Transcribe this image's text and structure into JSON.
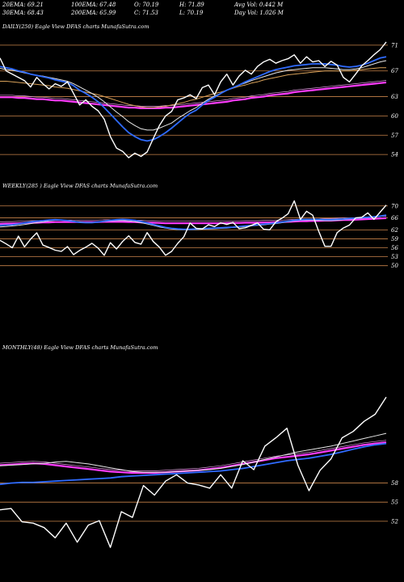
{
  "header": {
    "row1": [
      "20EMA: 69.21",
      "100EMA: 67.48",
      "O: 70.19",
      "H: 71.89",
      "Avg Vol: 0.442  M"
    ],
    "row2": [
      "30EMA: 68.43",
      "200EMA: 65.99",
      "C: 71.53",
      "L: 70.19",
      "Day Vol: 1.026  M"
    ]
  },
  "panels": [
    {
      "title": "DAILY(250) Eagle  View  DFAS charts MunafaSutra.com"
    },
    {
      "title": "WEEKLY(285                          ) Eagle  View  DFAS charts MunafaSutra.com"
    },
    {
      "title": "MONTHLY(48) Eagle  View  DFAS charts MunafaSutra.com"
    }
  ],
  "colors": {
    "background": "#000000",
    "price": "#ffffff",
    "level_lines": "#c8834a",
    "ema_blue": "#2f6bff",
    "ema_magenta": "#ff3cff",
    "ema_light": "#e6e6e6",
    "ema_gold": "#d9a25a"
  },
  "chart_data": [
    {
      "type": "line",
      "title": "DAILY(250) Eagle  View  DFAS charts MunafaSutra.com",
      "ylim": [
        51,
        73
      ],
      "tick_labels": [
        71,
        67,
        63,
        60,
        57,
        54
      ],
      "series": [
        {
          "role": "price",
          "values": [
            69,
            67,
            66.5,
            66,
            65.5,
            64.5,
            66,
            65,
            64.2,
            65,
            64.6,
            65.3,
            63.5,
            61.7,
            62.5,
            61.5,
            60.8,
            59.5,
            56.8,
            55,
            54.5,
            53.5,
            54.2,
            53.7,
            54.4,
            56.5,
            58.5,
            60,
            60.7,
            62.5,
            62.8,
            63.3,
            62.7,
            64.4,
            64.8,
            63.3,
            65.3,
            66.5,
            64.8,
            66.2,
            67.1,
            66.5,
            67.7,
            68.4,
            68.8,
            68.2,
            68.6,
            68.9,
            69.5,
            68.2,
            69.2,
            68.4,
            68.6,
            67.7,
            68.5,
            67.9,
            66,
            65.3,
            66.5,
            67.8,
            68.6,
            69.5,
            70.3,
            71.5
          ]
        },
        {
          "role": "ema_20",
          "values": [
            67.7,
            67.5,
            67.3,
            67,
            66.8,
            66.5,
            66.3,
            66.1,
            65.9,
            65.6,
            65.4,
            65.2,
            64.7,
            64,
            63.5,
            62.9,
            62.2,
            61.3,
            60.3,
            59.3,
            58.3,
            57.4,
            56.8,
            56.3,
            56.1,
            56.3,
            56.8,
            57.4,
            58.1,
            58.9,
            59.7,
            60.4,
            60.9,
            61.7,
            62.4,
            62.9,
            63.5,
            64,
            64.4,
            64.8,
            65.3,
            65.7,
            66.1,
            66.5,
            66.9,
            67.2,
            67.4,
            67.6,
            67.8,
            67.9,
            68,
            68.1,
            68.1,
            68.1,
            68,
            67.9,
            67.7,
            67.6,
            67.7,
            67.9,
            68.2,
            68.6,
            69,
            69.2
          ]
        },
        {
          "role": "ema_30",
          "values": [
            67.4,
            67.2,
            67.1,
            66.9,
            66.7,
            66.5,
            66.3,
            66.2,
            66,
            65.8,
            65.6,
            65.4,
            65,
            64.5,
            64,
            63.5,
            62.9,
            62.2,
            61.4,
            60.6,
            59.9,
            59.1,
            58.5,
            58,
            57.8,
            57.8,
            58.1,
            58.5,
            58.9,
            59.6,
            60.2,
            60.8,
            61.3,
            62,
            62.6,
            63.1,
            63.5,
            64,
            64.4,
            64.8,
            65.1,
            65.5,
            65.8,
            66.1,
            66.4,
            66.7,
            66.9,
            67.1,
            67.2,
            67.3,
            67.4,
            67.5,
            67.5,
            67.5,
            67.4,
            67.3,
            67.2,
            67.2,
            67.3,
            67.5,
            67.8,
            68.1,
            68.4,
            68.6
          ]
        },
        {
          "role": "ema_100",
          "values": [
            65.4,
            65.4,
            65.3,
            65.2,
            65.1,
            65,
            64.9,
            64.8,
            64.7,
            64.5,
            64.4,
            64.3,
            64.1,
            63.9,
            63.7,
            63.5,
            63.3,
            63,
            62.7,
            62.4,
            62.1,
            61.8,
            61.6,
            61.4,
            61.3,
            61.3,
            61.4,
            61.5,
            61.7,
            61.9,
            62.1,
            62.4,
            62.6,
            62.9,
            63.2,
            63.5,
            63.7,
            64,
            64.3,
            64.6,
            64.8,
            65.1,
            65.3,
            65.6,
            65.8,
            66,
            66.2,
            66.4,
            66.5,
            66.6,
            66.7,
            66.8,
            66.9,
            67,
            67,
            67,
            67,
            67,
            67.1,
            67.2,
            67.3,
            67.4,
            67.5,
            67.5
          ]
        },
        {
          "role": "ema_200",
          "values": [
            62.9,
            62.9,
            62.9,
            62.8,
            62.8,
            62.7,
            62.6,
            62.6,
            62.5,
            62.4,
            62.4,
            62.3,
            62.2,
            62.1,
            62,
            61.9,
            61.8,
            61.7,
            61.6,
            61.5,
            61.4,
            61.3,
            61.3,
            61.2,
            61.2,
            61.2,
            61.2,
            61.3,
            61.3,
            61.4,
            61.5,
            61.6,
            61.7,
            61.8,
            61.9,
            62,
            62.1,
            62.2,
            62.4,
            62.5,
            62.6,
            62.8,
            62.9,
            63,
            63.2,
            63.3,
            63.4,
            63.5,
            63.7,
            63.8,
            63.9,
            64,
            64.1,
            64.2,
            64.3,
            64.4,
            64.5,
            64.6,
            64.7,
            64.8,
            64.9,
            65,
            65.1,
            65.2
          ]
        }
      ]
    },
    {
      "type": "line",
      "title": "WEEKLY(285                          ) Eagle  View  DFAS charts MunafaSutra.com",
      "ylim": [
        28,
        74
      ],
      "tick_labels": [
        70,
        66,
        62,
        59,
        56,
        53,
        50
      ],
      "series": [
        {
          "role": "price",
          "values": [
            58.5,
            57.3,
            56,
            59.9,
            56.3,
            58.9,
            61,
            56.9,
            56.1,
            55.2,
            54.8,
            56.4,
            53.7,
            55.1,
            56.2,
            57.5,
            55.9,
            53.5,
            57.7,
            55.6,
            58.1,
            60,
            57.8,
            57.2,
            61.1,
            58.1,
            56.2,
            53.5,
            54.8,
            57.5,
            59.7,
            64.3,
            62.5,
            62.3,
            63.7,
            63.1,
            64.4,
            63.8,
            64.5,
            62.4,
            62.7,
            63.5,
            64.3,
            62.2,
            62,
            64.7,
            65.9,
            67.4,
            71.7,
            65.5,
            68.2,
            66.9,
            61.5,
            56.5,
            56.5,
            61.1,
            62.6,
            63.6,
            66,
            66.2,
            67.7,
            65.5,
            67.9,
            70.3
          ]
        },
        {
          "role": "ema_blue",
          "values": [
            63.5,
            63.6,
            63.7,
            64,
            64.3,
            64.6,
            64.9,
            65.1,
            65.3,
            65.4,
            65.3,
            65.1,
            64.8,
            64.5,
            64.4,
            64.4,
            64.6,
            64.9,
            65.2,
            65.4,
            65.5,
            65.4,
            65.2,
            64.8,
            64.3,
            63.8,
            63.3,
            62.8,
            62.5,
            62.3,
            62.2,
            62.2,
            62.3,
            62.4,
            62.5,
            62.6,
            62.7,
            62.8,
            62.9,
            63.1,
            63.3,
            63.5,
            63.7,
            63.9,
            64.1,
            64.3,
            64.6,
            64.9,
            65.2,
            65.4,
            65.5,
            65.5,
            65.5,
            65.4,
            65.4,
            65.5,
            65.6,
            65.8,
            65.9,
            66.1,
            66.2,
            66.4,
            66.6,
            66.9
          ]
        },
        {
          "role": "ema_magenta",
          "values": [
            64,
            64.1,
            64.1,
            64.2,
            64.3,
            64.4,
            64.4,
            64.5,
            64.5,
            64.6,
            64.6,
            64.6,
            64.6,
            64.6,
            64.6,
            64.6,
            64.6,
            64.7,
            64.7,
            64.7,
            64.7,
            64.6,
            64.6,
            64.5,
            64.4,
            64.4,
            64.3,
            64.2,
            64.2,
            64.2,
            64.2,
            64.2,
            64.2,
            64.2,
            64.2,
            64.2,
            64.2,
            64.3,
            64.3,
            64.3,
            64.4,
            64.4,
            64.4,
            64.5,
            64.5,
            64.6,
            64.6,
            64.7,
            64.8,
            64.9,
            64.9,
            65,
            65,
            65.1,
            65.1,
            65.2,
            65.3,
            65.3,
            65.4,
            65.5,
            65.6,
            65.7,
            65.8,
            65.9
          ]
        },
        {
          "role": "ema_light",
          "values": [
            63,
            63.1,
            63.3,
            63.5,
            63.8,
            64.1,
            64.4,
            64.7,
            65,
            65.2,
            65.2,
            65.1,
            64.9,
            64.7,
            64.5,
            64.5,
            64.6,
            64.8,
            65,
            65.1,
            65.1,
            65,
            64.8,
            64.4,
            64,
            63.5,
            63,
            62.6,
            62.3,
            62.1,
            62,
            62,
            62.1,
            62.2,
            62.3,
            62.4,
            62.5,
            62.6,
            62.8,
            62.9,
            63.1,
            63.3,
            63.5,
            63.7,
            63.9,
            64.1,
            64.4,
            64.7,
            65,
            65.2,
            65.3,
            65.3,
            65.2,
            65.1,
            65.1,
            65.2,
            65.4,
            65.6,
            65.8,
            65.9,
            66.1,
            66.3,
            66.5,
            66.8
          ]
        }
      ]
    },
    {
      "type": "line",
      "title": "MONTHLY(48) Eagle  View  DFAS charts MunafaSutra.com",
      "ylim": [
        45,
        78
      ],
      "tick_labels": [
        58,
        55,
        52
      ],
      "series": [
        {
          "role": "price",
          "values": [
            53.8,
            54,
            51.9,
            51.7,
            51,
            49.4,
            51.7,
            48.7,
            51.4,
            52.1,
            47.9,
            53.5,
            52.6,
            57.6,
            56.1,
            58.3,
            59.3,
            58,
            57.7,
            57.2,
            59.3,
            57.2,
            61.5,
            60.1,
            63.8,
            65.1,
            66.6,
            60.8,
            56.8,
            60,
            61.8,
            65.1,
            66.1,
            67.7,
            68.8,
            71.5
          ]
        },
        {
          "role": "ema_blue",
          "values": [
            57.8,
            58,
            58.1,
            58.1,
            58.2,
            58.3,
            58.4,
            58.5,
            58.6,
            58.7,
            58.8,
            59,
            59.1,
            59.2,
            59.3,
            59.4,
            59.5,
            59.6,
            59.7,
            59.8,
            59.9,
            60.1,
            60.3,
            60.6,
            60.9,
            61.2,
            61.5,
            61.7,
            61.9,
            62.2,
            62.5,
            62.9,
            63.3,
            63.7,
            64,
            64.2
          ]
        },
        {
          "role": "ema_magenta",
          "values": [
            60.8,
            60.9,
            61,
            61.1,
            61,
            60.8,
            60.6,
            60.4,
            60.2,
            60,
            59.8,
            59.7,
            59.6,
            59.6,
            59.6,
            59.7,
            59.8,
            59.9,
            60,
            60.2,
            60.4,
            60.7,
            61,
            61.3,
            61.6,
            61.9,
            62.1,
            62.3,
            62.5,
            62.8,
            63.1,
            63.4,
            63.7,
            64,
            64.2,
            64.4
          ]
        },
        {
          "role": "ema_light",
          "values": [
            60.7,
            60.8,
            60.9,
            61,
            61.1,
            61.3,
            61.4,
            61.2,
            61,
            60.7,
            60.4,
            60.1,
            59.8,
            59.7,
            59.7,
            59.7,
            59.8,
            59.9,
            60,
            60.1,
            60.3,
            60.6,
            60.9,
            61.3,
            61.7,
            62.1,
            62.5,
            62.9,
            63.2,
            63.5,
            63.8,
            64.2,
            64.6,
            65,
            65.4,
            65.8
          ]
        }
      ]
    }
  ]
}
